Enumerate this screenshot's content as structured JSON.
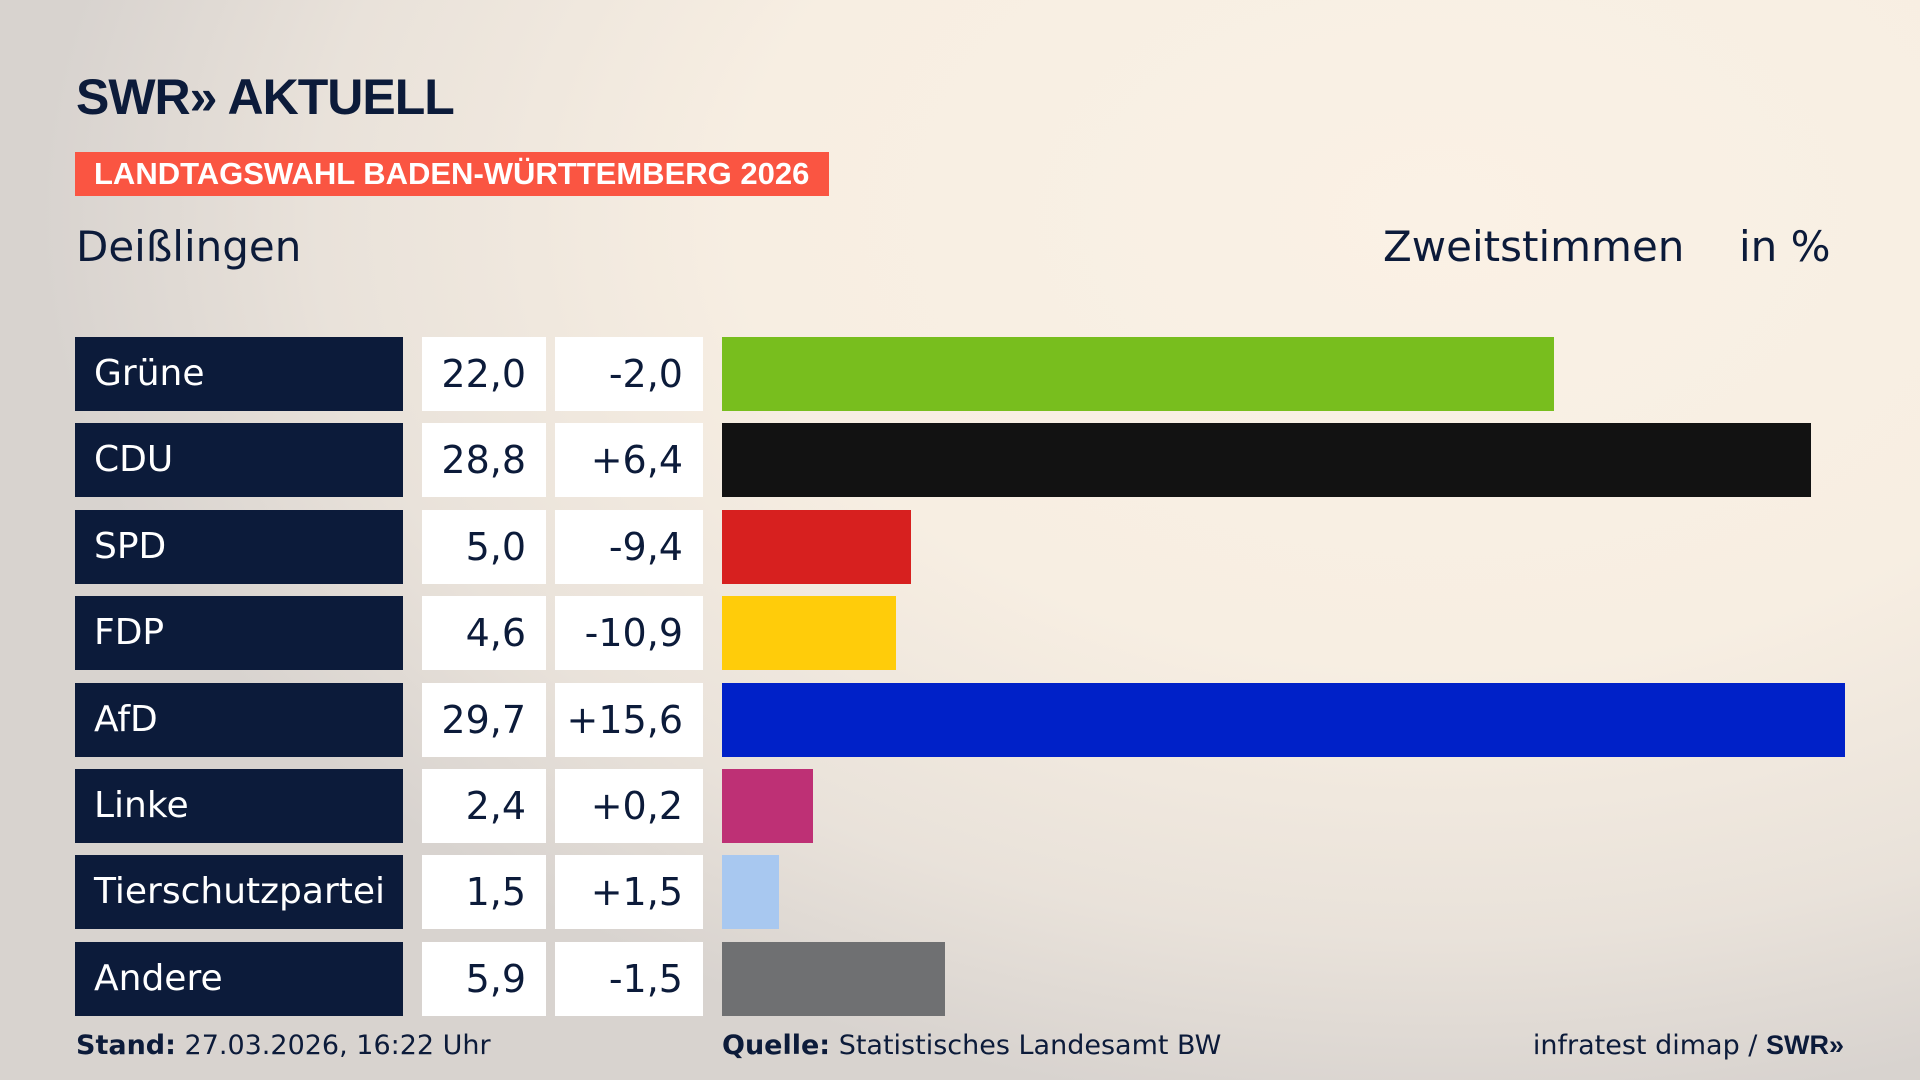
{
  "header": {
    "logo": "SWR» AKTUELL",
    "banner": "LANDTAGSWAHL BADEN-WÜRTTEMBERG 2026",
    "place": "Deißlingen",
    "vote_type": "Zweitstimmen",
    "unit": "in %"
  },
  "chart_data": {
    "type": "bar",
    "orientation": "horizontal",
    "categories": [
      "Grüne",
      "CDU",
      "SPD",
      "FDP",
      "AfD",
      "Linke",
      "Tierschutzpartei",
      "Andere"
    ],
    "values": [
      "22,0",
      "28,8",
      "5,0",
      "4,6",
      "29,7",
      "2,4",
      "1,5",
      "5,9"
    ],
    "numeric_values": [
      22.0,
      28.8,
      5.0,
      4.6,
      29.7,
      2.4,
      1.5,
      5.9
    ],
    "changes": [
      "-2,0",
      "+6,4",
      "-9,4",
      "-10,9",
      "+15,6",
      "+0,2",
      "+1,5",
      "-1,5"
    ],
    "colors": [
      "#78be1e",
      "#121212",
      "#d7201f",
      "#ffcc0a",
      "#0021c8",
      "#be3075",
      "#a8c8f0",
      "#6f7072"
    ],
    "xlim": [
      0,
      29.7
    ],
    "grid": false
  },
  "footer": {
    "stand_label": "Stand:",
    "stand_value": "27.03.2026, 16:22 Uhr",
    "source_label": "Quelle:",
    "source_value": "Statistisches Landesamt BW",
    "credit": "infratest dimap / ",
    "credit_logo": "SWR»"
  }
}
